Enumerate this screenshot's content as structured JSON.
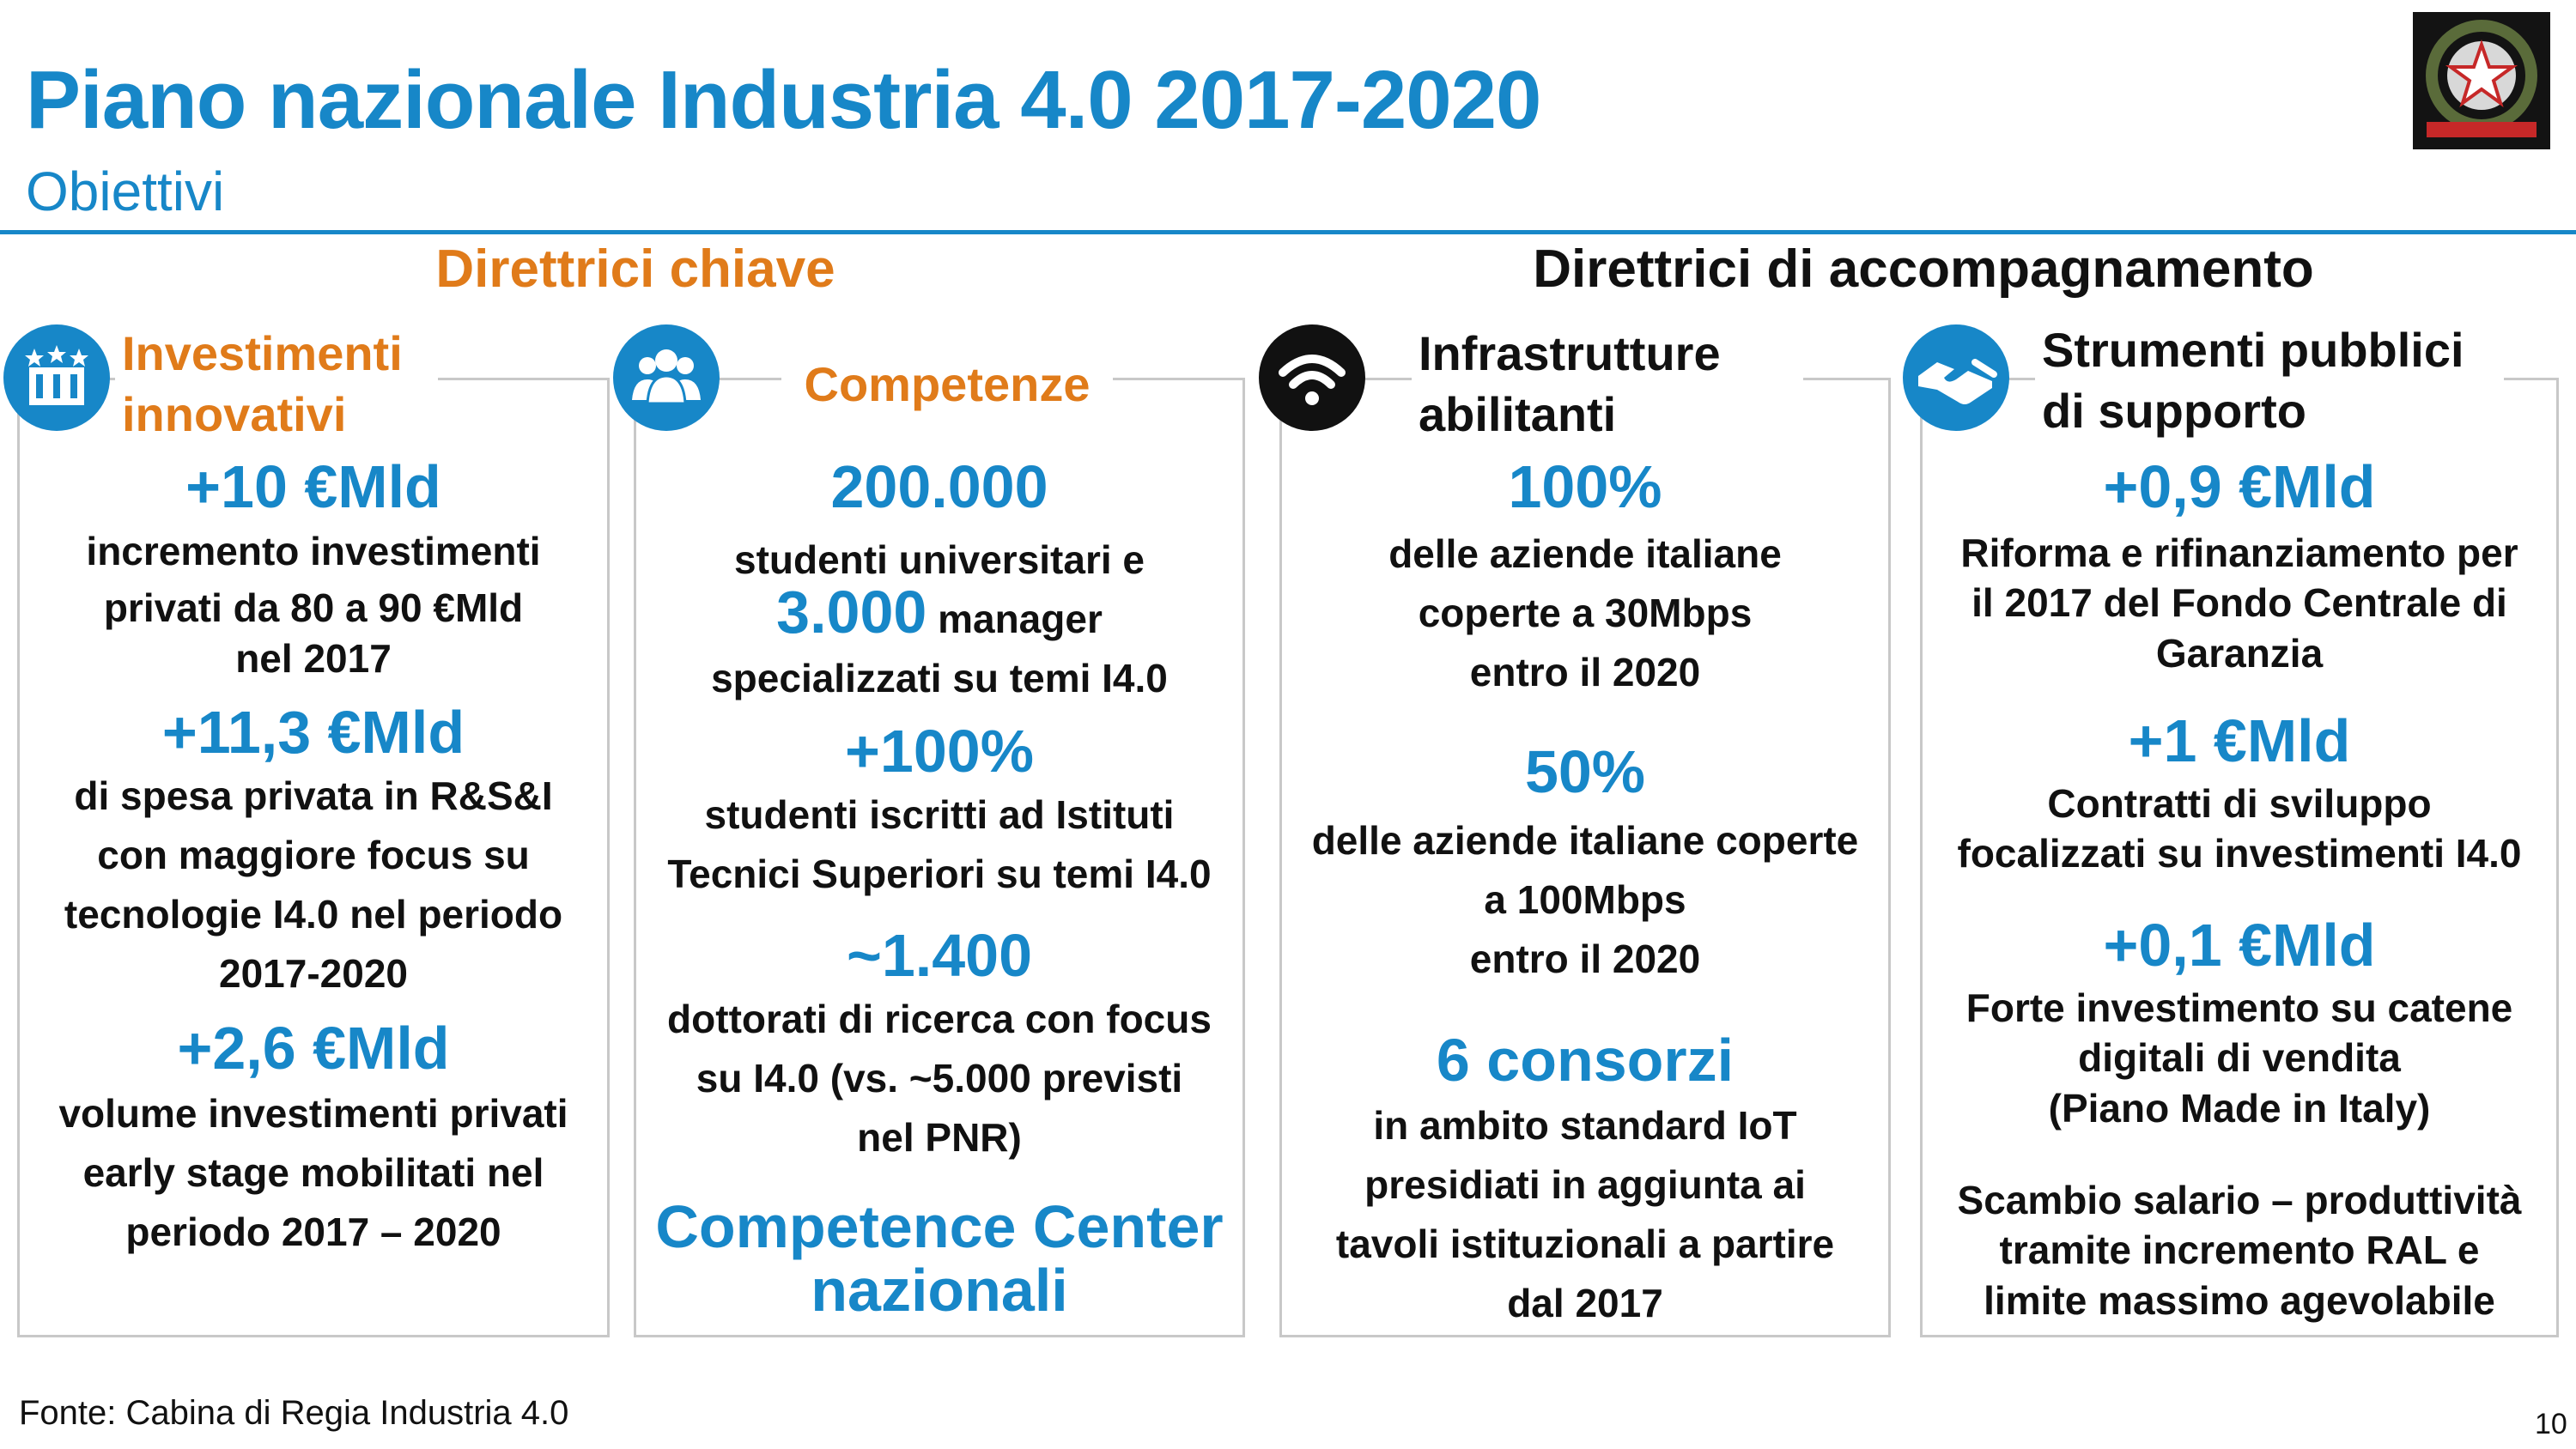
{
  "header": {
    "title": "Piano nazionale Industria 4.0 2017-2020",
    "subtitle": "Obiettivi"
  },
  "sections": {
    "key": "Direttrici chiave",
    "support": "Direttrici di accompagnamento"
  },
  "colors": {
    "accent_blue": "#1787c8",
    "accent_orange": "#e07b1a",
    "text": "#111111",
    "border": "#c8c8c8"
  },
  "cards": [
    {
      "icon": "factory-icon",
      "title_lines": [
        "Investimenti",
        "innovativi"
      ],
      "items": [
        {
          "figure": "+10 €Mld",
          "lines": [
            "incremento investimenti",
            "privati da 80 a 90 €Mld",
            "nel 2017"
          ]
        },
        {
          "figure": "+11,3 €Mld",
          "lines": [
            "di spesa privata in R&S&I",
            "con maggiore focus su",
            "tecnologie I4.0 nel periodo",
            "2017-2020"
          ]
        },
        {
          "figure": "+2,6 €Mld",
          "lines": [
            "volume investimenti privati",
            "early stage mobilitati nel",
            "periodo 2017 – 2020"
          ]
        }
      ]
    },
    {
      "icon": "people-group-icon",
      "title_lines": [
        "Competenze"
      ],
      "items": [
        {
          "figure": "200.000",
          "lines": [
            "studenti universitari e"
          ],
          "inline_figure": "3.000",
          "inline_text": " manager",
          "after_lines": [
            "specializzati su temi I4.0"
          ]
        },
        {
          "figure": "+100%",
          "lines": [
            "studenti iscritti ad Istituti",
            "Tecnici Superiori su temi I4.0"
          ]
        },
        {
          "figure": "~1.400",
          "lines": [
            "dottorati di ricerca con focus",
            "su I4.0  (vs. ~5.000 previsti",
            "nel PNR)"
          ]
        },
        {
          "figure_lines": [
            "Competence Center",
            "nazionali"
          ]
        }
      ]
    },
    {
      "icon": "wifi-icon",
      "title_lines": [
        "Infrastrutture",
        "abilitanti"
      ],
      "items": [
        {
          "figure": "100%",
          "lines": [
            "delle aziende italiane",
            "coperte a 30Mbps",
            "entro il 2020"
          ]
        },
        {
          "figure": "50%",
          "lines": [
            "delle aziende italiane coperte",
            "a 100Mbps",
            "entro il 2020"
          ]
        },
        {
          "figure": "6 consorzi",
          "lines": [
            "in ambito standard IoT",
            "presidiati in aggiunta ai",
            "tavoli istituzionali a partire",
            "dal 2017"
          ]
        }
      ]
    },
    {
      "icon": "handshake-icon",
      "title_lines": [
        "Strumenti pubblici",
        "di supporto"
      ],
      "items": [
        {
          "figure": "+0,9 €Mld",
          "lines": [
            "Riforma e rifinanziamento per",
            "il 2017 del Fondo Centrale di",
            "Garanzia"
          ]
        },
        {
          "figure": "+1 €Mld",
          "lines": [
            "Contratti di sviluppo",
            "focalizzati su investimenti I4.0"
          ]
        },
        {
          "figure": "+0,1 €Mld",
          "lines": [
            "Forte investimento su catene",
            "digitali di vendita",
            "(Piano Made in Italy)"
          ]
        },
        {
          "lines": [
            "Scambio salario – produttività",
            "tramite incremento RAL e",
            "limite massimo agevolabile"
          ]
        }
      ]
    }
  ],
  "emblem": {
    "icon": "republic-emblem-icon",
    "label": "REPUBBLICA ITALIANA"
  },
  "footer": {
    "source": "Fonte: Cabina di Regia Industria 4.0",
    "page": "10"
  }
}
